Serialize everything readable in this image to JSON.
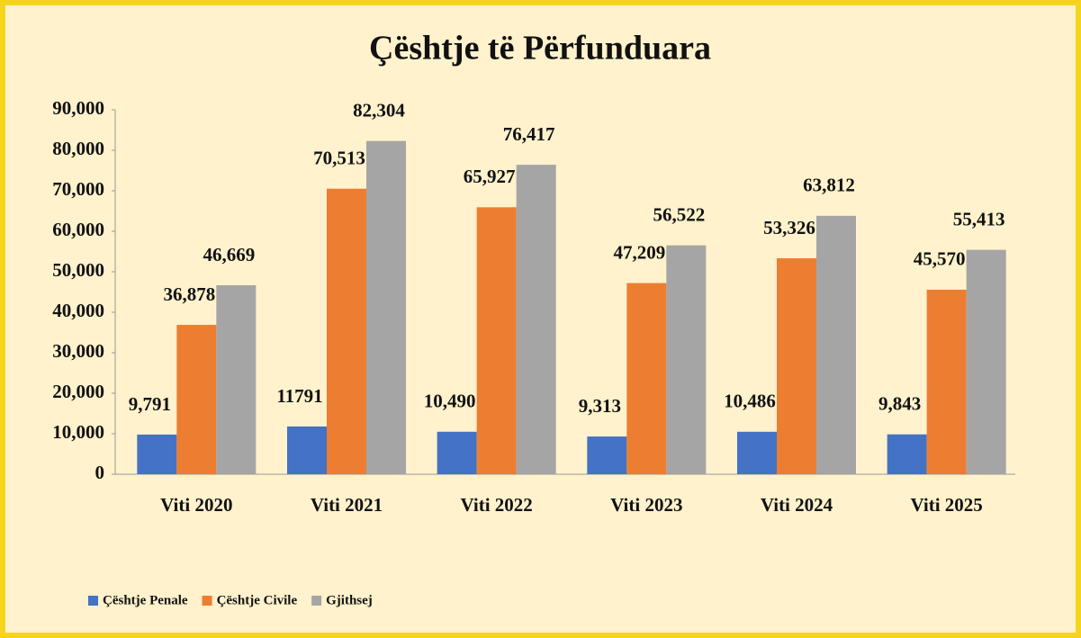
{
  "chart_data": {
    "type": "bar",
    "title": "Çështje të Përfunduara",
    "categories": [
      "Viti 2020",
      "Viti 2021",
      "Viti 2022",
      "Viti 2023",
      "Viti 2024",
      "Viti 2025"
    ],
    "series": [
      {
        "name": "Çështje Penale",
        "color": "#4472c4",
        "values": [
          9791,
          11791,
          10490,
          9313,
          10486,
          9843
        ],
        "value_labels": [
          "9,791",
          "11791",
          "10,490",
          "9,313",
          "10,486",
          "9,843"
        ]
      },
      {
        "name": "Çështje Civile",
        "color": "#ed7d31",
        "values": [
          36878,
          70513,
          65927,
          47209,
          53326,
          45570
        ],
        "value_labels": [
          "36,878",
          "70,513",
          "65,927",
          "47,209",
          "53,326",
          "45,570"
        ]
      },
      {
        "name": "Gjithsej",
        "color": "#a5a5a5",
        "values": [
          46669,
          82304,
          76417,
          56522,
          63812,
          55413
        ],
        "value_labels": [
          "46,669",
          "82,304",
          "76,417",
          "56,522",
          "63,812",
          "55,413"
        ]
      }
    ],
    "ylim": [
      0,
      90000
    ],
    "yticks": [
      0,
      {
        "value": 10000,
        "label": "10,000"
      },
      {
        "value": 20000,
        "label": "20,000"
      },
      {
        "value": 30000,
        "label": "30,000"
      },
      {
        "value": 40000,
        "label": "40,000"
      },
      {
        "value": 50000,
        "label": "50,000"
      },
      {
        "value": 60000,
        "label": "60,000"
      },
      {
        "value": 70000,
        "label": "70,000"
      },
      {
        "value": 80000,
        "label": "80,000"
      },
      {
        "value": 90000,
        "label": "90,000"
      }
    ],
    "grid": false,
    "legend": "bottom-left"
  }
}
